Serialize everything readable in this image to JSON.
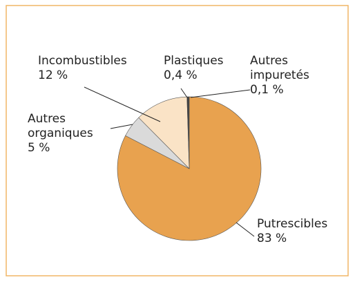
{
  "chart_data": {
    "type": "pie",
    "categories": [
      "Putrescibles",
      "Autres organiques",
      "Incombustibles",
      "Plastiques",
      "Autres impuretés"
    ],
    "values": [
      83,
      5,
      12,
      0.4,
      0.1
    ],
    "value_labels": [
      "83 %",
      "5 %",
      "12 %",
      "0,4 %",
      "0,1 %"
    ],
    "colors": [
      "#e8a24f",
      "#dadada",
      "#fae3c6",
      "#3a3a3a",
      "#000000"
    ]
  }
}
